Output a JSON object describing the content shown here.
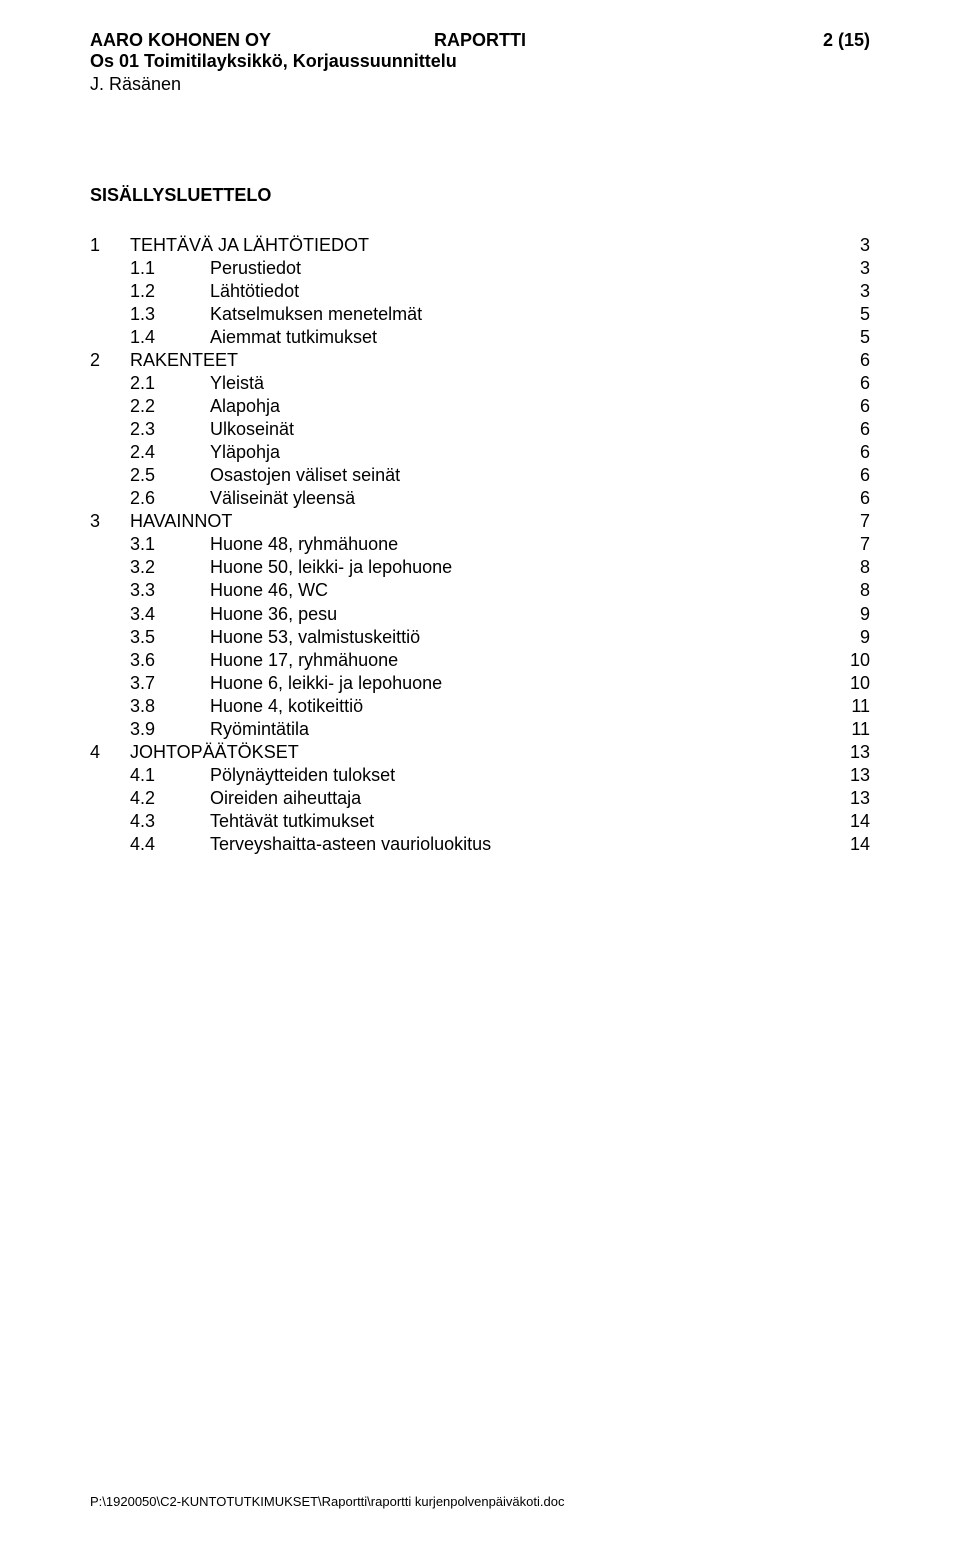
{
  "header": {
    "company": "AARO KOHONEN OY",
    "doc_type": "RAPORTTI",
    "page_label": "2 (15)",
    "subheader": "Os 01 Toimitilayksikkö, Korjaussuunnittelu",
    "author": "J. Räsänen"
  },
  "toc_title": "SISÄLLYSLUETTELO",
  "toc": [
    {
      "lvl": 1,
      "num": "1",
      "label": "TEHTÄVÄ JA LÄHTÖTIEDOT",
      "page": "3"
    },
    {
      "lvl": 2,
      "num": "1.1",
      "label": "Perustiedot",
      "page": "3"
    },
    {
      "lvl": 2,
      "num": "1.2",
      "label": "Lähtötiedot",
      "page": "3"
    },
    {
      "lvl": 2,
      "num": "1.3",
      "label": "Katselmuksen menetelmät",
      "page": "5"
    },
    {
      "lvl": 2,
      "num": "1.4",
      "label": "Aiemmat tutkimukset",
      "page": "5"
    },
    {
      "lvl": 1,
      "num": "2",
      "label": "RAKENTEET",
      "page": "6"
    },
    {
      "lvl": 2,
      "num": "2.1",
      "label": "Yleistä",
      "page": "6"
    },
    {
      "lvl": 2,
      "num": "2.2",
      "label": "Alapohja",
      "page": "6"
    },
    {
      "lvl": 2,
      "num": "2.3",
      "label": "Ulkoseinät",
      "page": "6"
    },
    {
      "lvl": 2,
      "num": "2.4",
      "label": "Yläpohja",
      "page": "6"
    },
    {
      "lvl": 2,
      "num": "2.5",
      "label": "Osastojen väliset seinät",
      "page": "6"
    },
    {
      "lvl": 2,
      "num": "2.6",
      "label": "Väliseinät yleensä",
      "page": "6"
    },
    {
      "lvl": 1,
      "num": "3",
      "label": "HAVAINNOT",
      "page": "7"
    },
    {
      "lvl": 2,
      "num": "3.1",
      "label": "Huone 48, ryhmähuone",
      "page": "7"
    },
    {
      "lvl": 2,
      "num": "3.2",
      "label": "Huone 50, leikki- ja lepohuone",
      "page": "8"
    },
    {
      "lvl": 2,
      "num": "3.3",
      "label": "Huone 46, WC",
      "page": "8"
    },
    {
      "lvl": 2,
      "num": "3.4",
      "label": "Huone 36, pesu",
      "page": "9"
    },
    {
      "lvl": 2,
      "num": "3.5",
      "label": "Huone 53, valmistuskeittiö",
      "page": "9"
    },
    {
      "lvl": 2,
      "num": "3.6",
      "label": "Huone 17, ryhmähuone",
      "page": "10"
    },
    {
      "lvl": 2,
      "num": "3.7",
      "label": "Huone 6, leikki- ja lepohuone",
      "page": "10"
    },
    {
      "lvl": 2,
      "num": "3.8",
      "label": "Huone 4, kotikeittiö",
      "page": "11"
    },
    {
      "lvl": 2,
      "num": "3.9",
      "label": "Ryömintätila",
      "page": "11"
    },
    {
      "lvl": 1,
      "num": "4",
      "label": "JOHTOPÄÄTÖKSET",
      "page": "13"
    },
    {
      "lvl": 2,
      "num": "4.1",
      "label": "Pölynäytteiden tulokset",
      "page": "13"
    },
    {
      "lvl": 2,
      "num": "4.2",
      "label": "Oireiden aiheuttaja",
      "page": "13"
    },
    {
      "lvl": 2,
      "num": "4.3",
      "label": "Tehtävät tutkimukset",
      "page": "14"
    },
    {
      "lvl": 2,
      "num": "4.4",
      "label": "Terveyshaitta-asteen vaurioluokitus",
      "page": "14"
    }
  ],
  "footer": "P:\\1920050\\C2-KUNTOTUTKIMUKSET\\Raportti\\raportti kurjenpolvenpäiväkoti.doc"
}
